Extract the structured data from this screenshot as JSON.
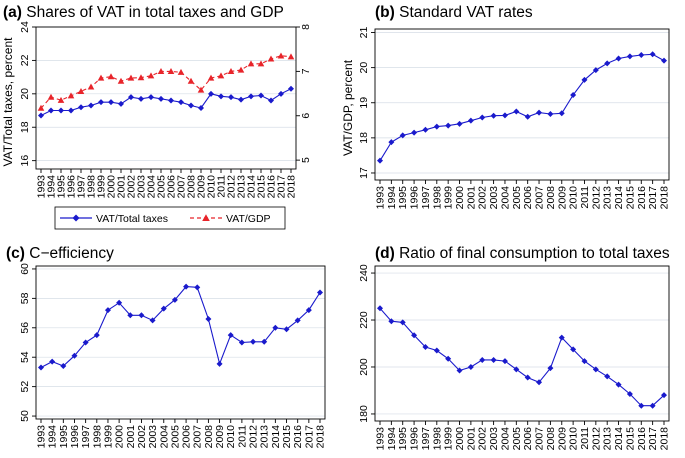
{
  "chart_data": [
    {
      "type": "line",
      "panel_label": "(a)",
      "title": "Shares of VAT in total taxes and GDP",
      "xlabel": "",
      "ylabel": "VAT/Total taxes, percent",
      "y2label": "",
      "categories": [
        "1993",
        "1994",
        "1995",
        "1996",
        "1997",
        "1998",
        "1999",
        "2000",
        "2001",
        "2002",
        "2003",
        "2004",
        "2005",
        "2006",
        "2007",
        "2008",
        "2009",
        "2010",
        "2011",
        "2012",
        "2013",
        "2014",
        "2015",
        "2016",
        "2017",
        "2018"
      ],
      "ylim": [
        15.5,
        24
      ],
      "yticks": [
        16,
        18,
        20,
        22,
        24
      ],
      "y2lim": [
        4.8,
        8
      ],
      "y2ticks": [
        5,
        6,
        7,
        8
      ],
      "grid": true,
      "legend": "bottom",
      "series": [
        {
          "name": "VAT/Total taxes",
          "axis": "left",
          "color": "#1a1acc",
          "style": "solid",
          "marker": "diamond",
          "values": [
            18.7,
            19.0,
            19.0,
            19.0,
            19.2,
            19.3,
            19.5,
            19.5,
            19.4,
            19.8,
            19.7,
            19.8,
            19.7,
            19.6,
            19.5,
            19.3,
            19.15,
            20.0,
            19.85,
            19.8,
            19.65,
            19.85,
            19.9,
            19.6,
            20.0,
            20.3
          ]
        },
        {
          "name": "VAT/GDP",
          "axis": "right",
          "color": "#e8242a",
          "style": "dashed",
          "marker": "triangle",
          "values": [
            6.17,
            6.42,
            6.35,
            6.45,
            6.55,
            6.65,
            6.85,
            6.88,
            6.78,
            6.85,
            6.86,
            6.9,
            7.0,
            7.0,
            6.98,
            6.78,
            6.58,
            6.85,
            6.9,
            7.0,
            7.03,
            7.17,
            7.17,
            7.28,
            7.35,
            7.33
          ]
        }
      ]
    },
    {
      "type": "line",
      "panel_label": "(b)",
      "title": "Standard VAT rates",
      "xlabel": "",
      "ylabel": "VAT/GDP, percent",
      "categories": [
        "1993",
        "1994",
        "1995",
        "1996",
        "1997",
        "1998",
        "1999",
        "2000",
        "2001",
        "2002",
        "2003",
        "2004",
        "2005",
        "2006",
        "2007",
        "2008",
        "2009",
        "2010",
        "2011",
        "2012",
        "2013",
        "2014",
        "2015",
        "2016",
        "2017",
        "2018"
      ],
      "ylim": [
        16.8,
        21.1
      ],
      "yticks": [
        17,
        18,
        19,
        20,
        21
      ],
      "grid": true,
      "series": [
        {
          "name": "Standard VAT rate",
          "color": "#1a1acc",
          "style": "solid",
          "marker": "diamond",
          "values": [
            17.35,
            17.88,
            18.07,
            18.15,
            18.23,
            18.32,
            18.35,
            18.4,
            18.49,
            18.58,
            18.63,
            18.64,
            18.75,
            18.6,
            18.72,
            18.68,
            18.7,
            19.22,
            19.65,
            19.93,
            20.12,
            20.26,
            20.32,
            20.36,
            20.38,
            20.2
          ]
        }
      ]
    },
    {
      "type": "line",
      "panel_label": "(c)",
      "title": "C−efficiency",
      "xlabel": "",
      "ylabel": "",
      "categories": [
        "1993",
        "1994",
        "1995",
        "1996",
        "1997",
        "1998",
        "1999",
        "2000",
        "2001",
        "2002",
        "2003",
        "2004",
        "2005",
        "2006",
        "2007",
        "2008",
        "2009",
        "2010",
        "2011",
        "2012",
        "2013",
        "2014",
        "2015",
        "2016",
        "2017",
        "2018"
      ],
      "ylim": [
        49.8,
        60.2
      ],
      "yticks": [
        50,
        52,
        54,
        56,
        58,
        60
      ],
      "grid": true,
      "series": [
        {
          "name": "C-efficiency",
          "color": "#1a1acc",
          "style": "solid",
          "marker": "diamond",
          "values": [
            53.3,
            53.7,
            53.4,
            54.1,
            55.0,
            55.5,
            57.2,
            57.7,
            56.85,
            56.85,
            56.5,
            57.3,
            57.9,
            58.8,
            58.75,
            56.6,
            53.55,
            55.5,
            55.0,
            55.05,
            55.05,
            56.0,
            55.9,
            56.5,
            57.2,
            58.4
          ]
        }
      ]
    },
    {
      "type": "line",
      "panel_label": "(d)",
      "title": "Ratio of final consumption to total taxes",
      "xlabel": "",
      "ylabel": "",
      "categories": [
        "1993",
        "1994",
        "1995",
        "1996",
        "1997",
        "1998",
        "1999",
        "2000",
        "2001",
        "2002",
        "2003",
        "2004",
        "2005",
        "2006",
        "2007",
        "2008",
        "2009",
        "2010",
        "2011",
        "2012",
        "2013",
        "2014",
        "2015",
        "2016",
        "2017",
        "2018"
      ],
      "ylim": [
        177,
        243
      ],
      "yticks": [
        180,
        200,
        220,
        240
      ],
      "grid": true,
      "series": [
        {
          "name": "Final consumption / total taxes",
          "color": "#1a1acc",
          "style": "solid",
          "marker": "diamond",
          "values": [
            225,
            219.5,
            219,
            213.5,
            208.5,
            207,
            203.5,
            198.5,
            200,
            203,
            203,
            202.5,
            199,
            195.5,
            193.5,
            199.5,
            212.5,
            207.5,
            202.5,
            199,
            196,
            192.5,
            188.5,
            183.5,
            183.5,
            188
          ]
        }
      ]
    }
  ]
}
